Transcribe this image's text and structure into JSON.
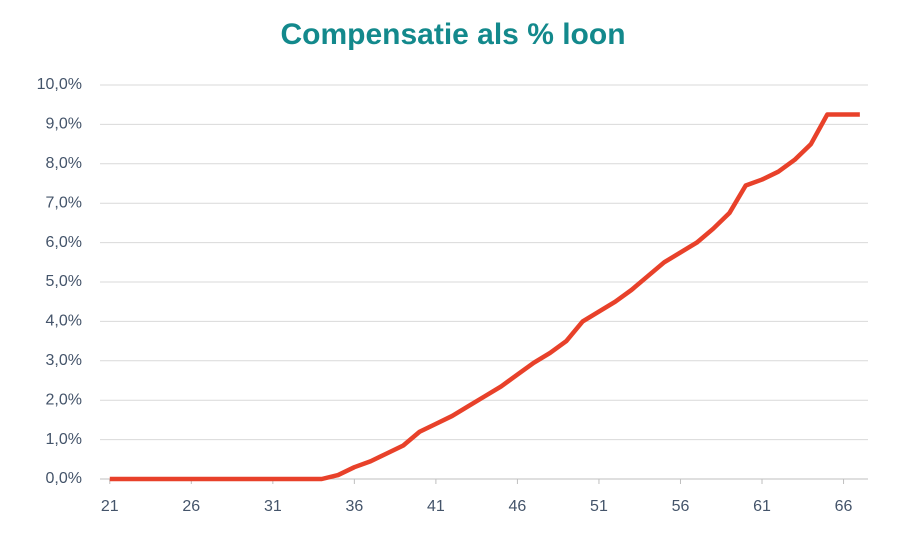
{
  "chart_data": {
    "type": "line",
    "title": "Compensatie als % loon",
    "x": [
      21,
      22,
      23,
      24,
      25,
      26,
      27,
      28,
      29,
      30,
      31,
      32,
      33,
      34,
      35,
      36,
      37,
      38,
      39,
      40,
      41,
      42,
      43,
      44,
      45,
      46,
      47,
      48,
      49,
      50,
      51,
      52,
      53,
      54,
      55,
      56,
      57,
      58,
      59,
      60,
      61,
      62,
      63,
      64,
      65,
      66,
      67
    ],
    "series": [
      {
        "color": "#e8412a",
        "values": [
          0,
          0,
          0,
          0,
          0,
          0,
          0,
          0,
          0,
          0,
          0,
          0,
          0,
          0,
          0.1,
          0.3,
          0.45,
          0.65,
          0.85,
          1.2,
          1.4,
          1.6,
          1.85,
          2.1,
          2.35,
          2.65,
          2.95,
          3.2,
          3.5,
          4.0,
          4.25,
          4.5,
          4.8,
          5.15,
          5.5,
          5.75,
          6.0,
          6.35,
          6.75,
          7.45,
          7.6,
          7.8,
          8.1,
          8.5,
          9.25,
          9.25,
          9.25
        ]
      }
    ],
    "xlim": [
      20.4,
      67.5
    ],
    "xticks": [
      21,
      26,
      31,
      36,
      41,
      46,
      51,
      56,
      61,
      66
    ],
    "ylim": [
      0,
      10
    ],
    "yticks": [
      {
        "value": 0,
        "label": "0,0%"
      },
      {
        "value": 1,
        "label": "1,0%"
      },
      {
        "value": 2,
        "label": "2,0%"
      },
      {
        "value": 3,
        "label": "3,0%"
      },
      {
        "value": 4,
        "label": "4,0%"
      },
      {
        "value": 5,
        "label": "5,0%"
      },
      {
        "value": 6,
        "label": "6,0%"
      },
      {
        "value": 7,
        "label": "7,0%"
      },
      {
        "value": 8,
        "label": "8,0%"
      },
      {
        "value": 9,
        "label": "9,0%"
      },
      {
        "value": 10,
        "label": "10,0%"
      }
    ],
    "grid": true
  }
}
